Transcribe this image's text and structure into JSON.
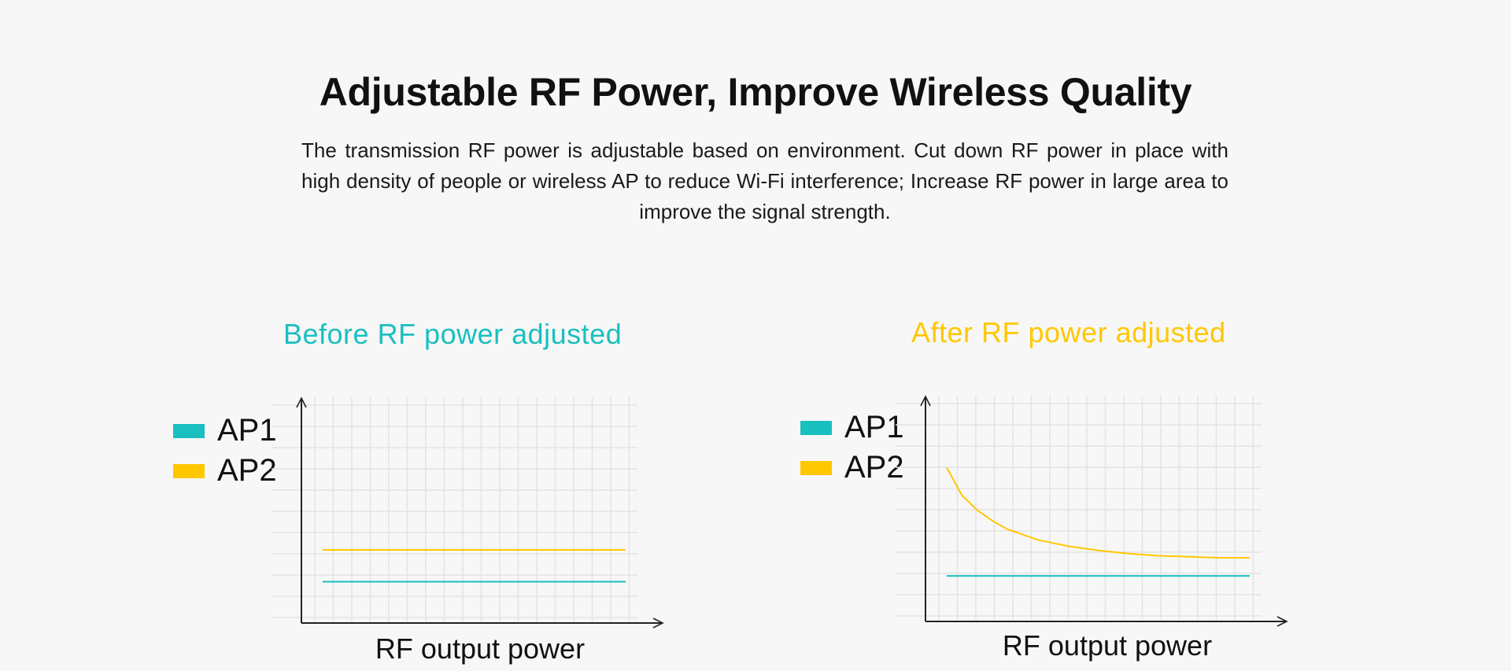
{
  "page": {
    "headline": "Adjustable RF Power, Improve Wireless Quality",
    "description": "The transmission RF power is adjustable based on environment. Cut down RF power in place with high density of people or wireless AP to reduce Wi-Fi interference; Increase RF power in large area to improve the signal strength."
  },
  "colors": {
    "ap1": "#1abfc0",
    "ap2": "#ffc700",
    "grid": "#e3e3e3",
    "axis": "#222222"
  },
  "charts": [
    {
      "title": "Before RF power adjusted",
      "title_color": "#1abfc0",
      "legend": [
        "AP1",
        "AP2"
      ],
      "x_axis_label": "RF output power"
    },
    {
      "title": "After RF power adjusted",
      "title_color": "#ffc700",
      "legend": [
        "AP1",
        "AP2"
      ],
      "x_axis_label": "RF output power"
    }
  ],
  "chart_data": [
    {
      "type": "line",
      "title": "Before RF power adjusted",
      "xlabel": "RF output power",
      "ylabel": "",
      "x": [
        0,
        1
      ],
      "series": [
        {
          "name": "AP1",
          "values": [
            0.15,
            0.15
          ]
        },
        {
          "name": "AP2",
          "values": [
            0.3,
            0.3
          ]
        }
      ],
      "ylim": [
        0,
        1
      ],
      "grid": true,
      "legend": "top-left"
    },
    {
      "type": "line",
      "title": "After RF power adjusted",
      "xlabel": "RF output power",
      "ylabel": "",
      "x": [
        0,
        0.05,
        0.1,
        0.15,
        0.2,
        0.3,
        0.4,
        0.5,
        0.6,
        0.7,
        0.8,
        0.9,
        1.0
      ],
      "series": [
        {
          "name": "AP1",
          "values": [
            0.17,
            0.17,
            0.17,
            0.17,
            0.17,
            0.17,
            0.17,
            0.17,
            0.17,
            0.17,
            0.17,
            0.17,
            0.17
          ]
        },
        {
          "name": "AP2",
          "values": [
            0.68,
            0.55,
            0.48,
            0.43,
            0.39,
            0.34,
            0.31,
            0.29,
            0.275,
            0.265,
            0.26,
            0.255,
            0.255
          ]
        }
      ],
      "ylim": [
        0,
        1
      ],
      "grid": true,
      "legend": "top-left"
    }
  ]
}
